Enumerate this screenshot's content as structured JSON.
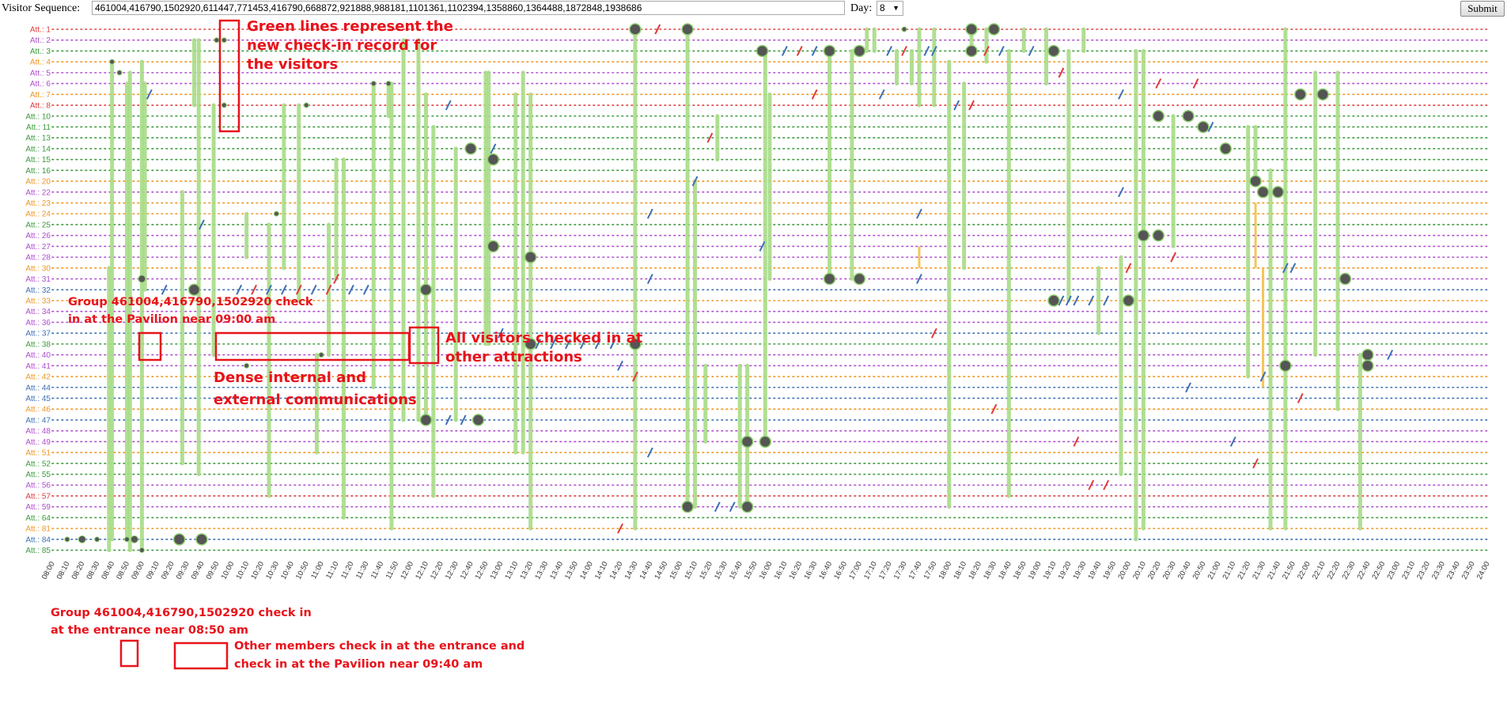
{
  "controls": {
    "sequence_label": "Visitor Sequence:",
    "sequence_value": "461004,416790,1502920,611447,771453,416790,668872,921888,988181,1101361,1102394,1358860,1364488,1872848,1938686",
    "day_label": "Day:",
    "day_value": "8",
    "submit_label": "Submit"
  },
  "chart_data": {
    "type": "scatter",
    "title": "",
    "xlabel": "",
    "ylabel": "",
    "grid": true,
    "x_start": "08:00",
    "x_end": "24:00",
    "x_tick_step_minutes": 10,
    "rows": [
      {
        "label": "Att.: 1",
        "color": "#e03a3a"
      },
      {
        "label": "Att.: 2",
        "color": "#b04bd0"
      },
      {
        "label": "Att.: 3",
        "color": "#3a9a3a"
      },
      {
        "label": "Att.: 4",
        "color": "#f0941e"
      },
      {
        "label": "Att.: 5",
        "color": "#b04bd0"
      },
      {
        "label": "Att.: 6",
        "color": "#b04bd0"
      },
      {
        "label": "Att.: 7",
        "color": "#f0941e"
      },
      {
        "label": "Att.: 8",
        "color": "#e03a3a"
      },
      {
        "label": "Att.: 10",
        "color": "#3a9a3a"
      },
      {
        "label": "Att.: 11",
        "color": "#3a9a3a"
      },
      {
        "label": "Att.: 13",
        "color": "#3a9a3a"
      },
      {
        "label": "Att.: 14",
        "color": "#3a9a3a"
      },
      {
        "label": "Att.: 15",
        "color": "#3a9a3a"
      },
      {
        "label": "Att.: 16",
        "color": "#3a9a3a"
      },
      {
        "label": "Att.: 20",
        "color": "#f0941e"
      },
      {
        "label": "Att.: 22",
        "color": "#b04bd0"
      },
      {
        "label": "Att.: 23",
        "color": "#f0941e"
      },
      {
        "label": "Att.: 24",
        "color": "#f0941e"
      },
      {
        "label": "Att.: 25",
        "color": "#3a9a3a"
      },
      {
        "label": "Att.: 26",
        "color": "#b04bd0"
      },
      {
        "label": "Att.: 27",
        "color": "#b04bd0"
      },
      {
        "label": "Att.: 28",
        "color": "#b04bd0"
      },
      {
        "label": "Att.: 30",
        "color": "#f0941e"
      },
      {
        "label": "Att.: 31",
        "color": "#b04bd0"
      },
      {
        "label": "Att.: 32",
        "color": "#3b6fb6"
      },
      {
        "label": "Att.: 33",
        "color": "#f0941e"
      },
      {
        "label": "Att.: 34",
        "color": "#b04bd0"
      },
      {
        "label": "Att.: 36",
        "color": "#b04bd0"
      },
      {
        "label": "Att.: 37",
        "color": "#3b6fb6"
      },
      {
        "label": "Att.: 38",
        "color": "#3a9a3a"
      },
      {
        "label": "Att.: 40",
        "color": "#b04bd0"
      },
      {
        "label": "Att.: 41",
        "color": "#b04bd0"
      },
      {
        "label": "Att.: 42",
        "color": "#f0941e"
      },
      {
        "label": "Att.: 44",
        "color": "#3b6fb6"
      },
      {
        "label": "Att.: 45",
        "color": "#3b6fb6"
      },
      {
        "label": "Att.: 46",
        "color": "#f0941e"
      },
      {
        "label": "Att.: 47",
        "color": "#3b6fb6"
      },
      {
        "label": "Att.: 48",
        "color": "#b04bd0"
      },
      {
        "label": "Att.: 49",
        "color": "#b04bd0"
      },
      {
        "label": "Att.: 51",
        "color": "#f0941e"
      },
      {
        "label": "Att.: 52",
        "color": "#3a9a3a"
      },
      {
        "label": "Att.: 55",
        "color": "#3a9a3a"
      },
      {
        "label": "Att.: 56",
        "color": "#b04bd0"
      },
      {
        "label": "Att.: 57",
        "color": "#e03a3a"
      },
      {
        "label": "Att.: 59",
        "color": "#b04bd0"
      },
      {
        "label": "Att.: 64",
        "color": "#3a9a3a"
      },
      {
        "label": "Att.: 81",
        "color": "#f0941e"
      },
      {
        "label": "Att.: 84",
        "color": "#3b6fb6"
      },
      {
        "label": "Att.: 85",
        "color": "#3a9a3a"
      }
    ],
    "checkin_lines": [
      [
        "08:40",
        3,
        47
      ],
      [
        "08:38",
        22,
        48
      ],
      [
        "08:50",
        5,
        47
      ],
      [
        "08:52",
        4,
        48
      ],
      [
        "09:00",
        3,
        48
      ],
      [
        "09:02",
        5,
        24
      ],
      [
        "09:27",
        15,
        40
      ],
      [
        "09:35",
        1,
        7
      ],
      [
        "09:38",
        1,
        41
      ],
      [
        "09:48",
        7,
        30
      ],
      [
        "10:10",
        17,
        21
      ],
      [
        "10:25",
        18,
        43
      ],
      [
        "10:35",
        7,
        22
      ],
      [
        "10:45",
        7,
        25
      ],
      [
        "10:57",
        30,
        39
      ],
      [
        "11:05",
        18,
        30
      ],
      [
        "11:10",
        12,
        23
      ],
      [
        "11:15",
        12,
        45
      ],
      [
        "11:35",
        5,
        33
      ],
      [
        "11:45",
        5,
        8
      ],
      [
        "11:47",
        5,
        46
      ],
      [
        "11:55",
        1,
        36
      ],
      [
        "12:05",
        1,
        36
      ],
      [
        "12:10",
        6,
        36
      ],
      [
        "12:15",
        9,
        43
      ],
      [
        "12:30",
        11,
        36
      ],
      [
        "12:50",
        4,
        29
      ],
      [
        "12:52",
        4,
        29
      ],
      [
        "13:10",
        6,
        39
      ],
      [
        "13:15",
        4,
        39
      ],
      [
        "13:20",
        6,
        46
      ],
      [
        "14:30",
        0,
        46
      ],
      [
        "15:05",
        0,
        44
      ],
      [
        "15:10",
        14,
        44
      ],
      [
        "15:17",
        31,
        38
      ],
      [
        "15:25",
        8,
        12
      ],
      [
        "15:40",
        31,
        44
      ],
      [
        "15:45",
        31,
        44
      ],
      [
        "15:57",
        2,
        38
      ],
      [
        "16:00",
        6,
        23
      ],
      [
        "16:40",
        2,
        23
      ],
      [
        "16:55",
        2,
        23
      ],
      [
        "17:05",
        0,
        2
      ],
      [
        "17:10",
        0,
        2
      ],
      [
        "17:25",
        2,
        5
      ],
      [
        "17:35",
        2,
        5
      ],
      [
        "17:40",
        0,
        7
      ],
      [
        "17:50",
        0,
        7
      ],
      [
        "18:00",
        3,
        44
      ],
      [
        "18:10",
        5,
        22
      ],
      [
        "18:15",
        0,
        2
      ],
      [
        "18:25",
        0,
        3
      ],
      [
        "18:40",
        2,
        43
      ],
      [
        "18:50",
        0,
        2
      ],
      [
        "19:05",
        0,
        5
      ],
      [
        "19:20",
        2,
        25
      ],
      [
        "19:30",
        0,
        2
      ],
      [
        "19:40",
        22,
        28
      ],
      [
        "19:55",
        21,
        41
      ],
      [
        "20:05",
        2,
        47
      ],
      [
        "20:10",
        2,
        46
      ],
      [
        "20:30",
        8,
        20
      ],
      [
        "21:20",
        9,
        32
      ],
      [
        "21:25",
        9,
        14
      ],
      [
        "21:35",
        13,
        46
      ],
      [
        "21:45",
        0,
        46
      ],
      [
        "22:05",
        4,
        30
      ],
      [
        "22:20",
        4,
        35
      ],
      [
        "22:35",
        30,
        46
      ]
    ],
    "checkin_points": [
      [
        "08:10",
        47,
        "s"
      ],
      [
        "08:20",
        47,
        "m"
      ],
      [
        "08:30",
        47,
        "s"
      ],
      [
        "08:40",
        3,
        "s"
      ],
      [
        "08:45",
        4,
        "s"
      ],
      [
        "08:50",
        47,
        "s"
      ],
      [
        "08:55",
        47,
        "m"
      ],
      [
        "09:00",
        23,
        "m"
      ],
      [
        "09:00",
        48,
        "s"
      ],
      [
        "09:25",
        47,
        "l"
      ],
      [
        "09:35",
        24,
        "l"
      ],
      [
        "09:40",
        47,
        "l"
      ],
      [
        "09:50",
        1,
        "s"
      ],
      [
        "09:55",
        1,
        "s"
      ],
      [
        "09:55",
        7,
        "s"
      ],
      [
        "10:10",
        31,
        "s"
      ],
      [
        "10:30",
        17,
        "s"
      ],
      [
        "10:50",
        7,
        "s"
      ],
      [
        "11:00",
        30,
        "s"
      ],
      [
        "11:35",
        5,
        "s"
      ],
      [
        "11:45",
        5,
        "s"
      ],
      [
        "12:10",
        24,
        "l"
      ],
      [
        "12:10",
        36,
        "l"
      ],
      [
        "12:40",
        11,
        "l"
      ],
      [
        "12:45",
        36,
        "l"
      ],
      [
        "12:55",
        12,
        "l"
      ],
      [
        "12:55",
        20,
        "l"
      ],
      [
        "13:20",
        21,
        "l"
      ],
      [
        "13:20",
        29,
        "l"
      ],
      [
        "14:30",
        0,
        "l"
      ],
      [
        "14:30",
        29,
        "l"
      ],
      [
        "15:05",
        0,
        "l"
      ],
      [
        "15:05",
        44,
        "l"
      ],
      [
        "15:45",
        38,
        "l"
      ],
      [
        "15:45",
        44,
        "l"
      ],
      [
        "15:55",
        2,
        "l"
      ],
      [
        "15:57",
        38,
        "l"
      ],
      [
        "16:40",
        2,
        "l"
      ],
      [
        "16:40",
        23,
        "l"
      ],
      [
        "17:00",
        2,
        "l"
      ],
      [
        "17:00",
        23,
        "l"
      ],
      [
        "17:30",
        0,
        "s"
      ],
      [
        "18:15",
        0,
        "l"
      ],
      [
        "18:15",
        2,
        "l"
      ],
      [
        "18:30",
        0,
        "l"
      ],
      [
        "19:10",
        2,
        "l"
      ],
      [
        "19:10",
        25,
        "l"
      ],
      [
        "20:00",
        25,
        "l"
      ],
      [
        "20:10",
        19,
        "l"
      ],
      [
        "20:20",
        19,
        "l"
      ],
      [
        "20:20",
        8,
        "l"
      ],
      [
        "20:40",
        8,
        "l"
      ],
      [
        "20:50",
        9,
        "l"
      ],
      [
        "21:05",
        11,
        "l"
      ],
      [
        "21:25",
        14,
        "l"
      ],
      [
        "21:30",
        15,
        "l"
      ],
      [
        "21:40",
        15,
        "l"
      ],
      [
        "21:45",
        31,
        "l"
      ],
      [
        "21:55",
        6,
        "l"
      ],
      [
        "22:10",
        6,
        "l"
      ],
      [
        "22:25",
        23,
        "l"
      ],
      [
        "22:40",
        30,
        "l"
      ],
      [
        "22:40",
        31,
        "l"
      ]
    ],
    "communications": [
      [
        "09:05",
        6,
        "#3b6fb6"
      ],
      [
        "09:15",
        24,
        "#3b6fb6"
      ],
      [
        "09:40",
        18,
        "#3b6fb6"
      ],
      [
        "10:05",
        24,
        "#3b6fb6"
      ],
      [
        "10:15",
        24,
        "#e03a3a"
      ],
      [
        "10:25",
        24,
        "#3b6fb6"
      ],
      [
        "10:35",
        24,
        "#3b6fb6"
      ],
      [
        "10:45",
        24,
        "#e03a3a"
      ],
      [
        "10:55",
        24,
        "#3b6fb6"
      ],
      [
        "11:05",
        24,
        "#e03a3a"
      ],
      [
        "11:10",
        23,
        "#e03a3a"
      ],
      [
        "11:20",
        24,
        "#3b6fb6"
      ],
      [
        "11:30",
        24,
        "#3b6fb6"
      ],
      [
        "12:25",
        36,
        "#3b6fb6"
      ],
      [
        "12:35",
        36,
        "#3b6fb6"
      ],
      [
        "12:25",
        7,
        "#3b6fb6"
      ],
      [
        "12:55",
        11,
        "#3b6fb6"
      ],
      [
        "13:00",
        28,
        "#3b6fb6"
      ],
      [
        "13:25",
        29,
        "#3b6fb6"
      ],
      [
        "13:35",
        29,
        "#3b6fb6"
      ],
      [
        "13:45",
        29,
        "#3b6fb6"
      ],
      [
        "13:55",
        29,
        "#3b6fb6"
      ],
      [
        "14:05",
        29,
        "#3b6fb6"
      ],
      [
        "14:15",
        29,
        "#3b6fb6"
      ],
      [
        "14:20",
        31,
        "#3b6fb6"
      ],
      [
        "14:30",
        32,
        "#e03a3a"
      ],
      [
        "14:20",
        46,
        "#e03a3a"
      ],
      [
        "14:40",
        17,
        "#3b6fb6"
      ],
      [
        "14:40",
        23,
        "#3b6fb6"
      ],
      [
        "14:45",
        0,
        "#e03a3a"
      ],
      [
        "14:40",
        39,
        "#3b6fb6"
      ],
      [
        "15:10",
        14,
        "#3b6fb6"
      ],
      [
        "15:20",
        10,
        "#e03a3a"
      ],
      [
        "15:25",
        44,
        "#3b6fb6"
      ],
      [
        "15:35",
        44,
        "#3b6fb6"
      ],
      [
        "15:55",
        20,
        "#3b6fb6"
      ],
      [
        "16:10",
        2,
        "#3b6fb6"
      ],
      [
        "16:20",
        2,
        "#e03a3a"
      ],
      [
        "16:30",
        2,
        "#3b6fb6"
      ],
      [
        "16:30",
        6,
        "#e03a3a"
      ],
      [
        "17:15",
        6,
        "#3b6fb6"
      ],
      [
        "17:20",
        2,
        "#3b6fb6"
      ],
      [
        "17:30",
        2,
        "#e03a3a"
      ],
      [
        "17:45",
        2,
        "#3b6fb6"
      ],
      [
        "17:50",
        2,
        "#3b6fb6"
      ],
      [
        "17:40",
        17,
        "#3b6fb6"
      ],
      [
        "17:40",
        23,
        "#3b6fb6"
      ],
      [
        "17:50",
        28,
        "#e03a3a"
      ],
      [
        "18:05",
        7,
        "#3b6fb6"
      ],
      [
        "18:15",
        7,
        "#e03a3a"
      ],
      [
        "18:25",
        2,
        "#e03a3a"
      ],
      [
        "18:35",
        2,
        "#3b6fb6"
      ],
      [
        "18:55",
        2,
        "#3b6fb6"
      ],
      [
        "18:30",
        35,
        "#e03a3a"
      ],
      [
        "19:15",
        25,
        "#3b6fb6"
      ],
      [
        "19:20",
        25,
        "#3b6fb6"
      ],
      [
        "19:25",
        25,
        "#3b6fb6"
      ],
      [
        "19:35",
        25,
        "#3b6fb6"
      ],
      [
        "19:45",
        25,
        "#3b6fb6"
      ],
      [
        "19:25",
        38,
        "#e03a3a"
      ],
      [
        "19:35",
        42,
        "#e03a3a"
      ],
      [
        "19:45",
        42,
        "#e03a3a"
      ],
      [
        "19:55",
        6,
        "#3b6fb6"
      ],
      [
        "19:55",
        15,
        "#3b6fb6"
      ],
      [
        "20:00",
        22,
        "#e03a3a"
      ],
      [
        "20:20",
        5,
        "#e03a3a"
      ],
      [
        "20:30",
        21,
        "#e03a3a"
      ],
      [
        "20:40",
        33,
        "#3b6fb6"
      ],
      [
        "20:45",
        5,
        "#e03a3a"
      ],
      [
        "20:55",
        9,
        "#3b6fb6"
      ],
      [
        "21:10",
        38,
        "#3b6fb6"
      ],
      [
        "21:25",
        40,
        "#e03a3a"
      ],
      [
        "21:45",
        22,
        "#3b6fb6"
      ],
      [
        "21:50",
        22,
        "#3b6fb6"
      ],
      [
        "21:55",
        34,
        "#e03a3a"
      ],
      [
        "22:55",
        30,
        "#3b6fb6"
      ],
      [
        "21:30",
        32,
        "#3b6fb6"
      ],
      [
        "19:15",
        4,
        "#e03a3a"
      ]
    ],
    "yellow_lines": [
      [
        "17:40",
        20,
        22
      ],
      [
        "21:25",
        16,
        22
      ],
      [
        "21:30",
        22,
        33
      ]
    ],
    "annotations": [
      {
        "id": "ann-green-lines",
        "text": [
          "Green lines represent the",
          "new check-in record for",
          "the visitors"
        ]
      },
      {
        "id": "ann-group-pavilion",
        "text": [
          "Group 461004,416790,1502920 check",
          "in at the Pavilion near 09:00 am"
        ]
      },
      {
        "id": "ann-dense-comm",
        "text": [
          "Dense internal and",
          "external communications"
        ]
      },
      {
        "id": "ann-all-visitors",
        "text": [
          "All visitors checked in at",
          "other attractions"
        ]
      },
      {
        "id": "ann-group-entrance",
        "text": [
          "Group 461004,416790,1502920 check in",
          "at the entrance near 08:50 am"
        ]
      },
      {
        "id": "ann-other-members",
        "text": [
          "Other members check in at the entrance and",
          "check in at the Pavilion near 09:40 am"
        ]
      }
    ]
  }
}
